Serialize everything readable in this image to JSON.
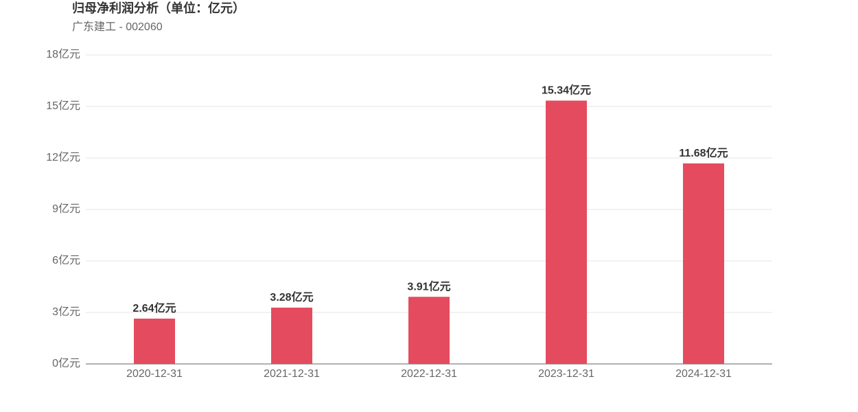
{
  "chart_data": {
    "type": "bar",
    "title": "归母净利润分析（单位：亿元）",
    "subtitle": "广东建工 - 002060",
    "categories": [
      "2020-12-31",
      "2021-12-31",
      "2022-12-31",
      "2023-12-31",
      "2024-12-31"
    ],
    "values": [
      2.64,
      3.28,
      3.91,
      15.34,
      11.68
    ],
    "value_labels": [
      "2.64亿元",
      "3.28亿元",
      "3.91亿元",
      "15.34亿元",
      "11.68亿元"
    ],
    "color": "#e54b5e",
    "ylim": [
      0,
      18
    ],
    "yticks": [
      {
        "value": 0,
        "label": "0亿元"
      },
      {
        "value": 3,
        "label": "3亿元"
      },
      {
        "value": 6,
        "label": "6亿元"
      },
      {
        "value": 9,
        "label": "9亿元"
      },
      {
        "value": 12,
        "label": "12亿元"
      },
      {
        "value": 15,
        "label": "15亿元"
      },
      {
        "value": 18,
        "label": "18亿元"
      }
    ],
    "grid": true
  }
}
